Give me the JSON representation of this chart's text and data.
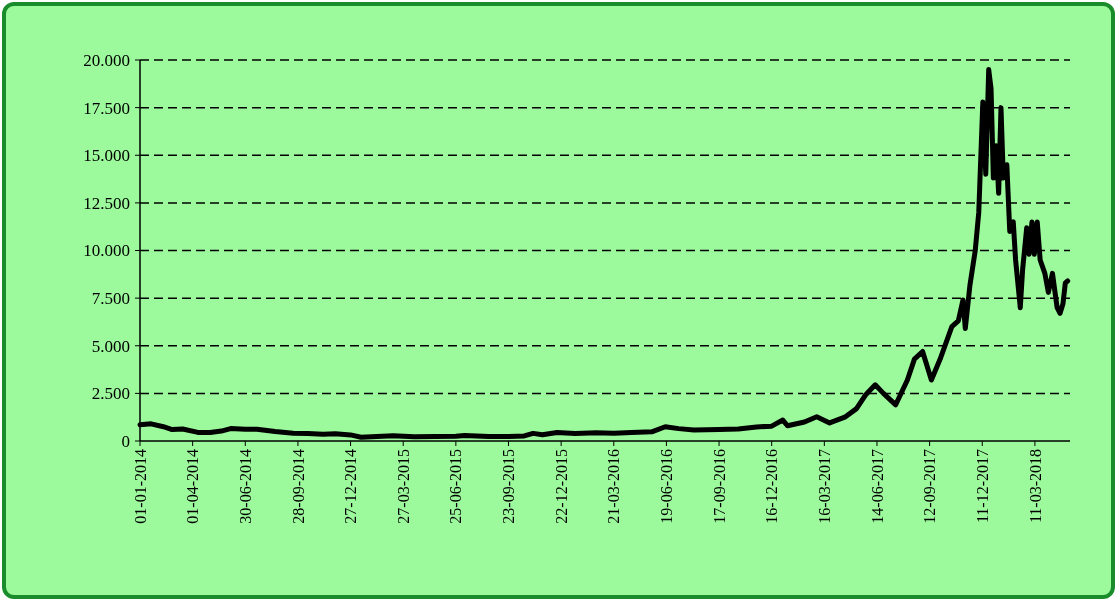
{
  "chart_data": {
    "type": "line",
    "grid": "y",
    "line_style": "solid",
    "marker": "none",
    "xlim": [
      "2014-01-01",
      "2018-05-10"
    ],
    "xticks": [
      {
        "value": "2014-01-01",
        "label": "01-01-2014"
      },
      {
        "value": "2014-04-01",
        "label": "01-04-2014"
      },
      {
        "value": "2014-06-30",
        "label": "30-06-2014"
      },
      {
        "value": "2014-09-28",
        "label": "28-09-2014"
      },
      {
        "value": "2014-12-27",
        "label": "27-12-2014"
      },
      {
        "value": "2015-03-27",
        "label": "27-03-2015"
      },
      {
        "value": "2015-06-25",
        "label": "25-06-2015"
      },
      {
        "value": "2015-09-23",
        "label": "23-09-2015"
      },
      {
        "value": "2015-12-22",
        "label": "22-12-2015"
      },
      {
        "value": "2016-03-21",
        "label": "21-03-2016"
      },
      {
        "value": "2016-06-19",
        "label": "19-06-2016"
      },
      {
        "value": "2016-09-17",
        "label": "17-09-2016"
      },
      {
        "value": "2016-12-16",
        "label": "16-12-2016"
      },
      {
        "value": "2017-03-16",
        "label": "16-03-2017"
      },
      {
        "value": "2017-06-14",
        "label": "14-06-2017"
      },
      {
        "value": "2017-09-12",
        "label": "12-09-2017"
      },
      {
        "value": "2017-12-11",
        "label": "11-12-2017"
      },
      {
        "value": "2018-03-11",
        "label": "11-03-2018"
      }
    ],
    "ylim": [
      0,
      20000
    ],
    "yticks": [
      0,
      {
        "value": 2500,
        "label": "2.500"
      },
      {
        "value": 5000,
        "label": "5.000"
      },
      {
        "value": 7500,
        "label": "7.500"
      },
      {
        "value": 10000,
        "label": "10.000"
      },
      {
        "value": 12500,
        "label": "12.500"
      },
      {
        "value": 15000,
        "label": "15.000"
      },
      {
        "value": 17500,
        "label": "17.500"
      },
      {
        "value": 20000,
        "label": "20.000"
      }
    ],
    "x": [
      "2014-01-01",
      "2014-01-20",
      "2014-02-10",
      "2014-02-25",
      "2014-03-15",
      "2014-04-10",
      "2014-05-01",
      "2014-05-20",
      "2014-06-05",
      "2014-06-30",
      "2014-07-20",
      "2014-08-20",
      "2014-09-20",
      "2014-10-15",
      "2014-11-10",
      "2014-12-01",
      "2014-12-27",
      "2015-01-14",
      "2015-02-10",
      "2015-03-10",
      "2015-04-15",
      "2015-05-20",
      "2015-06-25",
      "2015-07-10",
      "2015-08-20",
      "2015-09-23",
      "2015-10-20",
      "2015-11-04",
      "2015-11-20",
      "2015-12-15",
      "2016-01-15",
      "2016-02-20",
      "2016-03-21",
      "2016-04-20",
      "2016-05-25",
      "2016-06-17",
      "2016-07-10",
      "2016-08-05",
      "2016-09-17",
      "2016-10-20",
      "2016-11-20",
      "2016-12-16",
      "2017-01-04",
      "2017-01-12",
      "2017-02-10",
      "2017-03-03",
      "2017-03-25",
      "2017-04-20",
      "2017-05-10",
      "2017-05-25",
      "2017-06-11",
      "2017-06-25",
      "2017-07-16",
      "2017-08-05",
      "2017-08-17",
      "2017-08-31",
      "2017-09-15",
      "2017-09-30",
      "2017-10-20",
      "2017-10-31",
      "2017-11-08",
      "2017-11-12",
      "2017-11-20",
      "2017-11-29",
      "2017-12-05",
      "2017-12-12",
      "2017-12-17",
      "2017-12-22",
      "2017-12-26",
      "2017-12-30",
      "2018-01-04",
      "2018-01-08",
      "2018-01-12",
      "2018-01-16",
      "2018-01-22",
      "2018-01-27",
      "2018-02-02",
      "2018-02-06",
      "2018-02-14",
      "2018-02-18",
      "2018-02-25",
      "2018-03-01",
      "2018-03-06",
      "2018-03-10",
      "2018-03-15",
      "2018-03-20",
      "2018-03-28",
      "2018-04-03",
      "2018-04-10",
      "2018-04-18",
      "2018-04-23",
      "2018-04-28",
      "2018-05-02",
      "2018-05-06"
    ],
    "series": [
      {
        "color": "#000000",
        "values": [
          850,
          900,
          750,
          600,
          630,
          450,
          450,
          520,
          650,
          620,
          620,
          500,
          410,
          390,
          360,
          380,
          320,
          200,
          230,
          280,
          225,
          240,
          245,
          290,
          230,
          230,
          265,
          400,
          330,
          450,
          400,
          430,
          410,
          440,
          480,
          750,
          650,
          580,
          610,
          630,
          740,
          780,
          1100,
          800,
          1000,
          1270,
          950,
          1250,
          1700,
          2400,
          2950,
          2500,
          1900,
          3200,
          4300,
          4700,
          3200,
          4300,
          6000,
          6300,
          7400,
          5900,
          8200,
          10000,
          12000,
          17800,
          14000,
          19500,
          18500,
          13800,
          15500,
          13000,
          17500,
          13800,
          14500,
          11000,
          11500,
          9500,
          7000,
          9000,
          11200,
          9800,
          11500,
          9800,
          11500,
          9500,
          8800,
          7800,
          8800,
          7000,
          6700,
          7200,
          8300,
          8400
        ]
      }
    ]
  }
}
